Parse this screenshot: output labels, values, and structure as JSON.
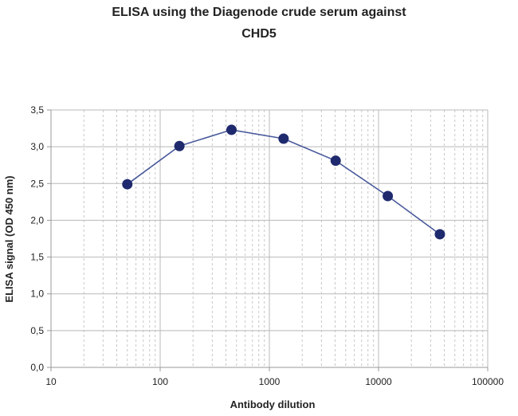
{
  "chart_data": {
    "type": "line",
    "title_lines": [
      "ELISA using the Diagenode crude serum against",
      "CHD5"
    ],
    "xlabel": "Antibody dilution",
    "ylabel": "ELISA signal (OD 450 nm)",
    "x_scale": "log",
    "xlim": [
      10,
      100000
    ],
    "ylim": [
      0,
      3.5
    ],
    "x_ticks": [
      {
        "value": 10,
        "label": "10"
      },
      {
        "value": 100,
        "label": "100"
      },
      {
        "value": 1000,
        "label": "1000"
      },
      {
        "value": 10000,
        "label": "10000"
      },
      {
        "value": 100000,
        "label": "100000"
      }
    ],
    "y_ticks": [
      {
        "value": 0,
        "label": "0,0"
      },
      {
        "value": 0.5,
        "label": "0,5"
      },
      {
        "value": 1.0,
        "label": "1,0"
      },
      {
        "value": 1.5,
        "label": "1,5"
      },
      {
        "value": 2.0,
        "label": "2,0"
      },
      {
        "value": 2.5,
        "label": "2,5"
      },
      {
        "value": 3.0,
        "label": "3,0"
      },
      {
        "value": 3.5,
        "label": "3,5"
      }
    ],
    "grid": true,
    "legend": "none",
    "series": [
      {
        "x": [
          50,
          150,
          450,
          1350,
          4050,
          12150,
          36450
        ],
        "y": [
          2.49,
          3.01,
          3.23,
          3.11,
          2.81,
          2.33,
          1.81
        ]
      }
    ],
    "colors": {
      "line": "#4a5a9c",
      "marker": "#1f2a6e",
      "major_grid": "#b8b8b8",
      "minor_grid": "#c8c8c8",
      "axis": "#999999",
      "text": "#222222"
    }
  }
}
